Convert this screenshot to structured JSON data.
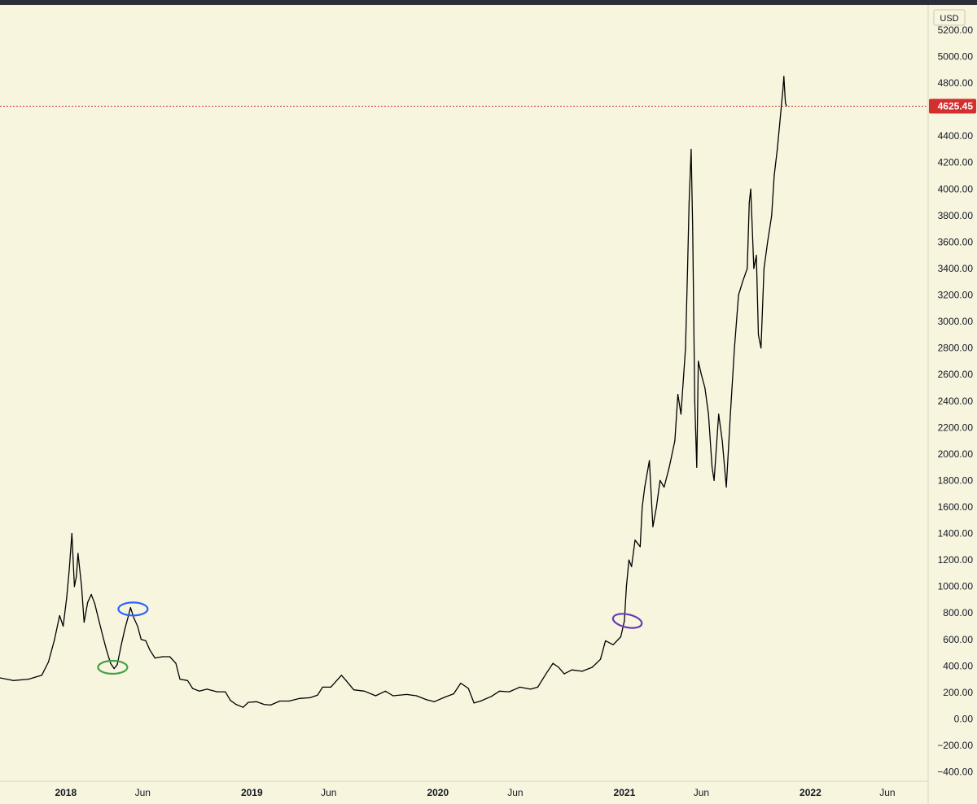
{
  "toolbar": {
    "currency": "USD"
  },
  "last_price": {
    "value": 4625.45,
    "label": "4625.45",
    "color": "#d32f2f"
  },
  "colors": {
    "background": "#f8f5df",
    "price_line": "#000000",
    "axis_text": "#131722",
    "last_price_line": "#d32f2f",
    "marker_blue": "#2962ff",
    "marker_green": "#43a047",
    "marker_purple": "#673ab7"
  },
  "annotations": [
    {
      "name": "blue-circle-marker",
      "date": "2018-05-13",
      "price": 830,
      "color": "#2962ff"
    },
    {
      "name": "green-circle-marker",
      "date": "2018-04-03",
      "price": 390,
      "color": "#43a047"
    },
    {
      "name": "purple-circle-marker",
      "date": "2021-01-07",
      "price": 740,
      "color": "#673ab7"
    }
  ],
  "chart_data": {
    "type": "line",
    "x_type": "date",
    "series": [
      {
        "values": [
          [
            "2017-08-25",
            310
          ],
          [
            "2017-09-20",
            290
          ],
          [
            "2017-10-20",
            300
          ],
          [
            "2017-11-15",
            330
          ],
          [
            "2017-11-28",
            430
          ],
          [
            "2017-12-10",
            600
          ],
          [
            "2017-12-20",
            780
          ],
          [
            "2017-12-27",
            700
          ],
          [
            "2018-01-03",
            920
          ],
          [
            "2018-01-08",
            1130
          ],
          [
            "2018-01-13",
            1400
          ],
          [
            "2018-01-18",
            1000
          ],
          [
            "2018-01-22",
            1080
          ],
          [
            "2018-01-25",
            1250
          ],
          [
            "2018-02-01",
            1000
          ],
          [
            "2018-02-06",
            730
          ],
          [
            "2018-02-13",
            880
          ],
          [
            "2018-02-20",
            940
          ],
          [
            "2018-02-27",
            870
          ],
          [
            "2018-03-06",
            760
          ],
          [
            "2018-03-15",
            620
          ],
          [
            "2018-03-22",
            520
          ],
          [
            "2018-03-30",
            420
          ],
          [
            "2018-04-06",
            380
          ],
          [
            "2018-04-12",
            410
          ],
          [
            "2018-04-20",
            560
          ],
          [
            "2018-04-27",
            680
          ],
          [
            "2018-05-04",
            780
          ],
          [
            "2018-05-08",
            840
          ],
          [
            "2018-05-15",
            760
          ],
          [
            "2018-05-22",
            700
          ],
          [
            "2018-05-29",
            600
          ],
          [
            "2018-06-07",
            590
          ],
          [
            "2018-06-15",
            520
          ],
          [
            "2018-06-25",
            460
          ],
          [
            "2018-07-10",
            470
          ],
          [
            "2018-07-24",
            470
          ],
          [
            "2018-08-05",
            420
          ],
          [
            "2018-08-13",
            300
          ],
          [
            "2018-08-28",
            290
          ],
          [
            "2018-09-07",
            230
          ],
          [
            "2018-09-20",
            210
          ],
          [
            "2018-10-05",
            225
          ],
          [
            "2018-10-25",
            205
          ],
          [
            "2018-11-10",
            205
          ],
          [
            "2018-11-20",
            140
          ],
          [
            "2018-12-01",
            110
          ],
          [
            "2018-12-15",
            88
          ],
          [
            "2018-12-25",
            125
          ],
          [
            "2019-01-10",
            130
          ],
          [
            "2019-01-25",
            110
          ],
          [
            "2019-02-07",
            105
          ],
          [
            "2019-02-25",
            135
          ],
          [
            "2019-03-15",
            135
          ],
          [
            "2019-04-05",
            155
          ],
          [
            "2019-04-25",
            160
          ],
          [
            "2019-05-10",
            180
          ],
          [
            "2019-05-20",
            240
          ],
          [
            "2019-06-05",
            240
          ],
          [
            "2019-06-26",
            330
          ],
          [
            "2019-07-05",
            290
          ],
          [
            "2019-07-20",
            220
          ],
          [
            "2019-08-10",
            210
          ],
          [
            "2019-09-01",
            175
          ],
          [
            "2019-09-20",
            210
          ],
          [
            "2019-10-05",
            175
          ],
          [
            "2019-11-01",
            185
          ],
          [
            "2019-11-20",
            175
          ],
          [
            "2019-12-10",
            145
          ],
          [
            "2019-12-25",
            130
          ],
          [
            "2020-01-15",
            165
          ],
          [
            "2020-02-01",
            190
          ],
          [
            "2020-02-15",
            270
          ],
          [
            "2020-03-01",
            230
          ],
          [
            "2020-03-12",
            120
          ],
          [
            "2020-03-25",
            135
          ],
          [
            "2020-04-15",
            170
          ],
          [
            "2020-05-01",
            210
          ],
          [
            "2020-05-20",
            205
          ],
          [
            "2020-06-10",
            240
          ],
          [
            "2020-07-01",
            225
          ],
          [
            "2020-07-15",
            240
          ],
          [
            "2020-08-01",
            345
          ],
          [
            "2020-08-14",
            420
          ],
          [
            "2020-08-25",
            390
          ],
          [
            "2020-09-05",
            340
          ],
          [
            "2020-09-20",
            370
          ],
          [
            "2020-10-10",
            360
          ],
          [
            "2020-10-30",
            390
          ],
          [
            "2020-11-15",
            450
          ],
          [
            "2020-11-25",
            590
          ],
          [
            "2020-12-10",
            560
          ],
          [
            "2020-12-25",
            620
          ],
          [
            "2021-01-01",
            740
          ],
          [
            "2021-01-05",
            1000
          ],
          [
            "2021-01-10",
            1200
          ],
          [
            "2021-01-15",
            1150
          ],
          [
            "2021-01-22",
            1350
          ],
          [
            "2021-02-01",
            1300
          ],
          [
            "2021-02-05",
            1600
          ],
          [
            "2021-02-10",
            1750
          ],
          [
            "2021-02-19",
            1950
          ],
          [
            "2021-02-26",
            1450
          ],
          [
            "2021-03-05",
            1600
          ],
          [
            "2021-03-12",
            1800
          ],
          [
            "2021-03-20",
            1750
          ],
          [
            "2021-03-30",
            1900
          ],
          [
            "2021-04-10",
            2100
          ],
          [
            "2021-04-16",
            2450
          ],
          [
            "2021-04-22",
            2300
          ],
          [
            "2021-05-01",
            2800
          ],
          [
            "2021-05-05",
            3400
          ],
          [
            "2021-05-08",
            3900
          ],
          [
            "2021-05-12",
            4300
          ],
          [
            "2021-05-15",
            3700
          ],
          [
            "2021-05-19",
            2400
          ],
          [
            "2021-05-23",
            1900
          ],
          [
            "2021-05-26",
            2700
          ],
          [
            "2021-06-01",
            2600
          ],
          [
            "2021-06-08",
            2500
          ],
          [
            "2021-06-15",
            2300
          ],
          [
            "2021-06-22",
            1900
          ],
          [
            "2021-06-26",
            1800
          ],
          [
            "2021-07-05",
            2300
          ],
          [
            "2021-07-12",
            2100
          ],
          [
            "2021-07-20",
            1750
          ],
          [
            "2021-07-28",
            2300
          ],
          [
            "2021-08-05",
            2800
          ],
          [
            "2021-08-13",
            3200
          ],
          [
            "2021-08-21",
            3300
          ],
          [
            "2021-08-30",
            3400
          ],
          [
            "2021-09-03",
            3900
          ],
          [
            "2021-09-06",
            4000
          ],
          [
            "2021-09-12",
            3400
          ],
          [
            "2021-09-17",
            3500
          ],
          [
            "2021-09-21",
            2900
          ],
          [
            "2021-09-26",
            2800
          ],
          [
            "2021-10-02",
            3400
          ],
          [
            "2021-10-09",
            3600
          ],
          [
            "2021-10-17",
            3800
          ],
          [
            "2021-10-22",
            4100
          ],
          [
            "2021-10-28",
            4300
          ],
          [
            "2021-11-02",
            4500
          ],
          [
            "2021-11-08",
            4750
          ],
          [
            "2021-11-10",
            4850
          ],
          [
            "2021-11-13",
            4650
          ],
          [
            "2021-11-15",
            4625
          ]
        ]
      }
    ],
    "x_ticks": [
      {
        "label": "2018",
        "date": "2018-01-01",
        "bold": true
      },
      {
        "label": "Jun",
        "date": "2018-06-01",
        "bold": false
      },
      {
        "label": "2019",
        "date": "2019-01-01",
        "bold": true
      },
      {
        "label": "Jun",
        "date": "2019-06-01",
        "bold": false
      },
      {
        "label": "2020",
        "date": "2020-01-01",
        "bold": true
      },
      {
        "label": "Jun",
        "date": "2020-06-01",
        "bold": false
      },
      {
        "label": "2021",
        "date": "2021-01-01",
        "bold": true
      },
      {
        "label": "Jun",
        "date": "2021-06-01",
        "bold": false
      },
      {
        "label": "2022",
        "date": "2022-01-01",
        "bold": true
      },
      {
        "label": "Jun",
        "date": "2022-06-01",
        "bold": false
      }
    ],
    "y_ticks": [
      "5200.00",
      "5000.00",
      "4800.00",
      "4400.00",
      "4200.00",
      "4000.00",
      "3800.00",
      "3600.00",
      "3400.00",
      "3200.00",
      "3000.00",
      "2800.00",
      "2600.00",
      "2400.00",
      "2200.00",
      "2000.00",
      "1800.00",
      "1600.00",
      "1400.00",
      "1200.00",
      "1000.00",
      "800.00",
      "600.00",
      "400.00",
      "200.00",
      "0.00",
      "−200.00",
      "−400.00"
    ],
    "xlim": [
      "2017-08-25",
      "2022-08-20"
    ],
    "ylim": [
      -470,
      5390
    ],
    "grid": false,
    "legend": "none"
  }
}
